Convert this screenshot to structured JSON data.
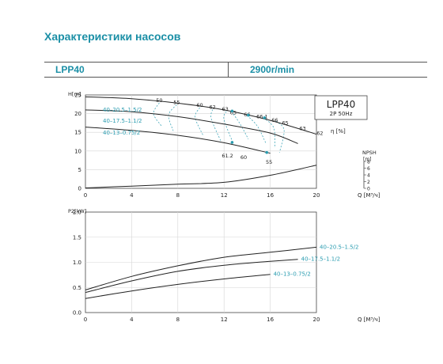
{
  "page": {
    "title": "Характеристики насосов",
    "model": "LPP40",
    "speed": "2900r/min"
  },
  "colors": {
    "accent": "#1b8fa6",
    "curve": "#222222",
    "teal": "#2a9cb0"
  },
  "chart_data": [
    {
      "type": "line",
      "title": "",
      "box": {
        "title": "LPP40",
        "subtitle": "2P  50Hz"
      },
      "ylabel": "H[m]",
      "xlabel": "Q [M³/ч]",
      "xlim": [
        0,
        20
      ],
      "ylim": [
        0,
        25
      ],
      "xticks": [
        "0",
        "4",
        "8",
        "12",
        "16",
        "20"
      ],
      "yticks": [
        "0",
        "5",
        "10",
        "15",
        "20",
        "25"
      ],
      "eta_label": "η [%]",
      "npsh": {
        "label": "NPSH",
        "unit": "[m]",
        "ticks": [
          "0",
          "2",
          "4",
          "6",
          "8"
        ]
      },
      "series": [
        {
          "name": "40–20.5–1.5/2",
          "x": [
            0,
            4,
            8,
            12,
            16,
            20
          ],
          "y": [
            24.5,
            24,
            22.8,
            21,
            18.2,
            14.5
          ]
        },
        {
          "name": "40–17.5–1.1/2",
          "x": [
            0,
            4,
            8,
            12,
            16,
            18.4
          ],
          "y": [
            21,
            20.5,
            19.2,
            17.2,
            14.8,
            12
          ]
        },
        {
          "name": "40–13–0.75/2",
          "x": [
            0,
            4,
            8,
            12,
            16
          ],
          "y": [
            16.4,
            15.5,
            14.2,
            12.2,
            9.4
          ]
        },
        {
          "name": "NPSH",
          "x": [
            0,
            4,
            8,
            12,
            16,
            20
          ],
          "y": [
            0.1,
            0.6,
            1.1,
            1.6,
            3.5,
            6.2
          ]
        }
      ],
      "efficiency_labels": [
        {
          "text": "50",
          "x": 6.4,
          "y": 23.1
        },
        {
          "text": "55",
          "x": 7.9,
          "y": 22.6
        },
        {
          "text": "60",
          "x": 9.9,
          "y": 21.8
        },
        {
          "text": "62",
          "x": 11.0,
          "y": 21.3
        },
        {
          "text": "63",
          "x": 12.1,
          "y": 20.8
        },
        {
          "text": "65",
          "x": 12.8,
          "y": 19.8
        },
        {
          "text": "66",
          "x": 14.0,
          "y": 19.3
        },
        {
          "text": "66.1",
          "x": 15.3,
          "y": 18.7
        },
        {
          "text": "66",
          "x": 16.4,
          "y": 17.8
        },
        {
          "text": "65",
          "x": 17.3,
          "y": 17.1
        },
        {
          "text": "63",
          "x": 18.8,
          "y": 15.6
        },
        {
          "text": "62",
          "x": 20.3,
          "y": 14.3
        },
        {
          "text": "61.2",
          "x": 12.3,
          "y": 8.3
        },
        {
          "text": "60",
          "x": 13.7,
          "y": 7.8
        },
        {
          "text": "55",
          "x": 15.9,
          "y": 6.6
        }
      ],
      "operating_points": [
        {
          "x": 12.7,
          "y": 20.7
        },
        {
          "x": 14.1,
          "y": 19.6
        },
        {
          "x": 15.5,
          "y": 18.9
        },
        {
          "x": 12.7,
          "y": 12.3
        },
        {
          "x": 15.7,
          "y": 9.6
        }
      ]
    },
    {
      "type": "line",
      "title": "",
      "ylabel": "P2[kW]",
      "xlabel": "Q [M³/ч]",
      "xlim": [
        0,
        20
      ],
      "ylim": [
        0,
        2.0
      ],
      "xticks": [
        "0",
        "4",
        "8",
        "12",
        "16",
        "20"
      ],
      "yticks": [
        "0.0",
        "0.5",
        "1.0",
        "1.5",
        "2.0"
      ],
      "series": [
        {
          "name": "40–20.5–1.5/2",
          "x": [
            0,
            4,
            8,
            12,
            16,
            20
          ],
          "y": [
            0.45,
            0.72,
            0.93,
            1.1,
            1.2,
            1.3
          ]
        },
        {
          "name": "40–17.5–1.1/2",
          "x": [
            0,
            4,
            8,
            12,
            16,
            18.4
          ],
          "y": [
            0.4,
            0.63,
            0.82,
            0.94,
            1.02,
            1.06
          ]
        },
        {
          "name": "40–13–0.75/2",
          "x": [
            0,
            4,
            8,
            12,
            16
          ],
          "y": [
            0.28,
            0.43,
            0.56,
            0.67,
            0.76
          ]
        }
      ]
    }
  ]
}
